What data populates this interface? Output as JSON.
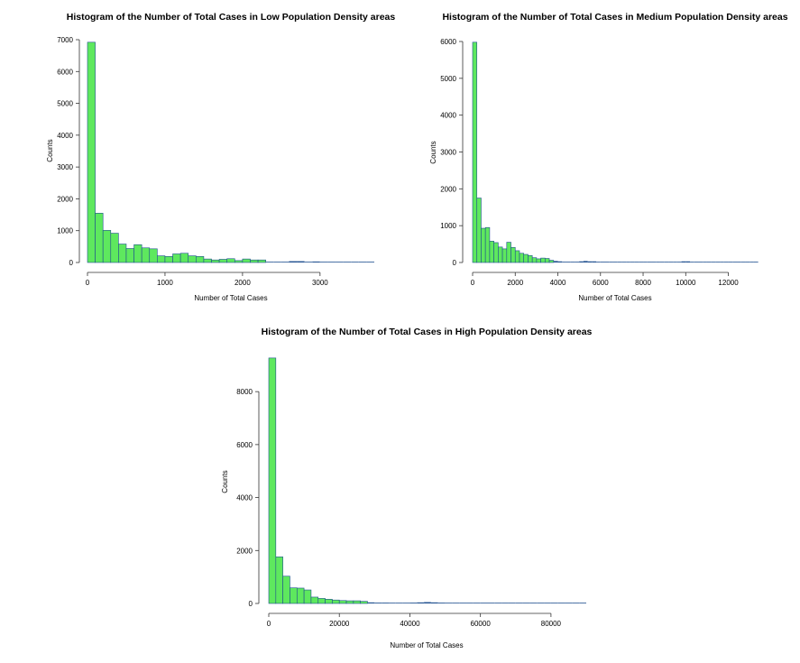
{
  "colors": {
    "bar_fill": "#5ee85e",
    "bar_stroke": "#1f4f8f",
    "axis": "#333333"
  },
  "chart_data": [
    {
      "type": "bar",
      "title": "Histogram of the Number of Total Cases in Low Population Density areas",
      "xlabel": "Number of Total Cases",
      "ylabel": "Counts",
      "bin_width": 100,
      "xlim": [
        0,
        3700
      ],
      "ylim": [
        0,
        7000
      ],
      "xticks": [
        0,
        1000,
        2000,
        3000
      ],
      "yticks": [
        0,
        1000,
        2000,
        3000,
        4000,
        5000,
        6000,
        7000
      ],
      "counts": [
        6920,
        1550,
        1010,
        920,
        580,
        440,
        560,
        460,
        430,
        210,
        190,
        270,
        290,
        210,
        190,
        110,
        80,
        100,
        120,
        60,
        110,
        80,
        80,
        20,
        15,
        15,
        40,
        40,
        20,
        30,
        20,
        20,
        10,
        10,
        10,
        10,
        5
      ]
    },
    {
      "type": "bar",
      "title": "Histogram of the Number of Total Cases in Medium Population Density areas",
      "xlabel": "Number of Total Cases",
      "ylabel": "Counts",
      "bin_width": 200,
      "xlim": [
        0,
        13500
      ],
      "ylim": [
        0,
        6000
      ],
      "xticks": [
        0,
        2000,
        4000,
        6000,
        8000,
        10000,
        12000
      ],
      "yticks": [
        0,
        1000,
        2000,
        3000,
        4000,
        5000,
        6000
      ],
      "counts": [
        5980,
        1750,
        930,
        950,
        580,
        540,
        420,
        370,
        550,
        410,
        320,
        250,
        220,
        190,
        130,
        100,
        120,
        110,
        60,
        40,
        30,
        20,
        20,
        20,
        20,
        30,
        40,
        30,
        30,
        20,
        20,
        20,
        15,
        10,
        10,
        10,
        10,
        10,
        10,
        10,
        10,
        10,
        10,
        10,
        10,
        10,
        10,
        10,
        10,
        30,
        30,
        10,
        10,
        10,
        10,
        10,
        10,
        5,
        5,
        5,
        5,
        5,
        5,
        5,
        5,
        5,
        5
      ]
    },
    {
      "type": "bar",
      "title": "Histogram of the Number of Total Cases in High Population Density areas",
      "xlabel": "Number of Total Cases",
      "ylabel": "Counts",
      "bin_width": 2000,
      "xlim": [
        0,
        90000
      ],
      "ylim": [
        0,
        9300
      ],
      "xticks": [
        0,
        20000,
        40000,
        60000,
        80000
      ],
      "yticks": [
        0,
        2000,
        4000,
        6000,
        8000
      ],
      "counts": [
        9270,
        1760,
        1030,
        590,
        580,
        510,
        240,
        190,
        160,
        130,
        110,
        100,
        100,
        80,
        40,
        30,
        30,
        20,
        20,
        20,
        30,
        40,
        50,
        40,
        30,
        20,
        10,
        10,
        10,
        10,
        10,
        10,
        10,
        10,
        10,
        10,
        10,
        10,
        10,
        10,
        10,
        10,
        10,
        10,
        10
      ]
    }
  ]
}
